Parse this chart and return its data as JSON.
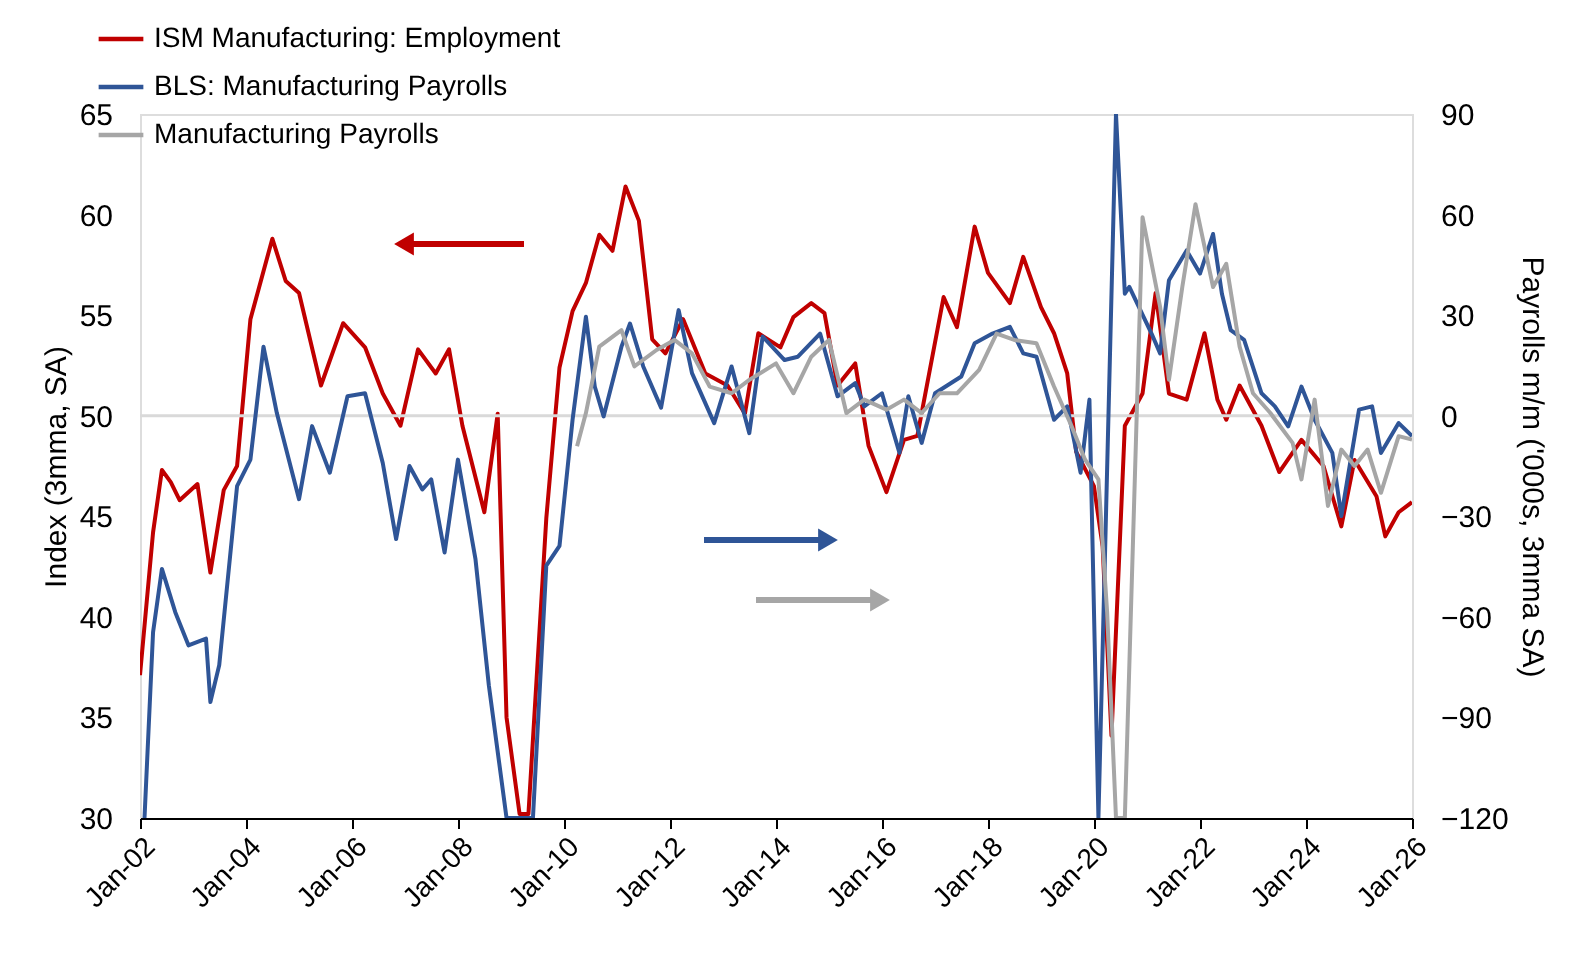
{
  "chart_data": {
    "type": "line",
    "ylabel": "Index (3mma, SA)",
    "y2label": "Payrolls m/m ('000s, 3mma SA)",
    "xlim": [
      "2002-01",
      "2026-01"
    ],
    "xticks": [
      {
        "value": "2002-01",
        "label": "Jan-02"
      },
      {
        "value": "2004-01",
        "label": "Jan-04"
      },
      {
        "value": "2006-01",
        "label": "Jan-06"
      },
      {
        "value": "2008-01",
        "label": "Jan-08"
      },
      {
        "value": "2010-01",
        "label": "Jan-10"
      },
      {
        "value": "2012-01",
        "label": "Jan-12"
      },
      {
        "value": "2014-01",
        "label": "Jan-14"
      },
      {
        "value": "2016-01",
        "label": "Jan-16"
      },
      {
        "value": "2018-01",
        "label": "Jan-18"
      },
      {
        "value": "2020-01",
        "label": "Jan-20"
      },
      {
        "value": "2022-01",
        "label": "Jan-22"
      },
      {
        "value": "2024-01",
        "label": "Jan-24"
      },
      {
        "value": "2026-01",
        "label": "Jan-26"
      }
    ],
    "ylim": [
      30,
      65
    ],
    "yticks": [
      30,
      35,
      40,
      45,
      50,
      55,
      60,
      65
    ],
    "y2lim": [
      -120,
      90
    ],
    "y2ticks": [
      -120,
      -90,
      -60,
      -30,
      0,
      30,
      60,
      90
    ],
    "ref_lines": [
      {
        "axis": "y",
        "value": 50,
        "color": "#d9d9d9"
      }
    ],
    "legend": "top left",
    "grid": false,
    "line_style": "solid",
    "marker": "none",
    "series": [
      {
        "name": "ISM Manufacturing: Employment",
        "color": "#c00000",
        "x": [
          "2002-01",
          "2002-04",
          "2002-06",
          "2002-08",
          "2002-10",
          "2003-02",
          "2003-05",
          "2003-08",
          "2003-11",
          "2004-02",
          "2004-07",
          "2004-10",
          "2005-01",
          "2005-06",
          "2005-11",
          "2006-04",
          "2006-08",
          "2006-12",
          "2007-04",
          "2007-08",
          "2007-11",
          "2008-02",
          "2008-07",
          "2008-10",
          "2008-12",
          "2009-03",
          "2009-05",
          "2009-09",
          "2009-12",
          "2010-03",
          "2010-06",
          "2010-09",
          "2010-12",
          "2011-03",
          "2011-06",
          "2011-09",
          "2011-12",
          "2012-04",
          "2012-09",
          "2013-02",
          "2013-06",
          "2013-09",
          "2014-02",
          "2014-05",
          "2014-09",
          "2014-12",
          "2015-03",
          "2015-07",
          "2015-10",
          "2016-02",
          "2016-06",
          "2016-09",
          "2017-03",
          "2017-06",
          "2017-10",
          "2018-01",
          "2018-06",
          "2018-09",
          "2019-01",
          "2019-04",
          "2019-07",
          "2019-09",
          "2020-01",
          "2020-03",
          "2020-05",
          "2020-08",
          "2020-12",
          "2021-03",
          "2021-06",
          "2021-10",
          "2022-02",
          "2022-05",
          "2022-07",
          "2022-10",
          "2023-03",
          "2023-07",
          "2023-12",
          "2024-05",
          "2024-09",
          "2024-12",
          "2025-05",
          "2025-07",
          "2025-10",
          "2026-01"
        ],
        "values": [
          37.1,
          44.2,
          47.3,
          46.7,
          45.8,
          46.6,
          42.2,
          46.3,
          47.5,
          54.8,
          58.8,
          56.7,
          56.1,
          51.5,
          54.6,
          53.4,
          51.1,
          49.5,
          53.3,
          52.1,
          53.3,
          49.5,
          45.2,
          50.1,
          35.0,
          30.2,
          30.2,
          44.9,
          52.4,
          55.2,
          56.6,
          59.0,
          58.2,
          61.4,
          59.7,
          53.8,
          53.1,
          54.8,
          52.1,
          51.5,
          50.1,
          54.1,
          53.4,
          54.9,
          55.6,
          55.1,
          51.5,
          52.6,
          48.5,
          46.2,
          48.8,
          49.0,
          55.9,
          54.4,
          59.4,
          57.1,
          55.6,
          57.9,
          55.4,
          54.1,
          52.1,
          48.2,
          46.5,
          43.5,
          34.1,
          49.5,
          51.1,
          56.1,
          51.1,
          50.8,
          54.1,
          50.8,
          49.8,
          51.5,
          49.5,
          47.2,
          48.8,
          47.5,
          44.5,
          47.8,
          46.0,
          44.0,
          45.2,
          45.7
        ]
      },
      {
        "name": "BLS: Manufacturing Payrolls",
        "color": "#2f5597",
        "axis": "y2",
        "x": [
          "2002-02",
          "2002-04",
          "2002-06",
          "2002-09",
          "2002-12",
          "2003-04",
          "2003-05",
          "2003-07",
          "2003-11",
          "2004-02",
          "2004-05",
          "2004-08",
          "2005-01",
          "2005-04",
          "2005-08",
          "2005-12",
          "2006-04",
          "2006-08",
          "2006-11",
          "2007-02",
          "2007-05",
          "2007-07",
          "2007-10",
          "2008-01",
          "2008-05",
          "2008-08",
          "2008-12",
          "2009-06",
          "2009-09",
          "2009-12",
          "2010-03",
          "2010-06",
          "2010-08",
          "2010-10",
          "2011-02",
          "2011-04",
          "2011-07",
          "2011-11",
          "2012-03",
          "2012-06",
          "2012-11",
          "2013-03",
          "2013-07",
          "2013-10",
          "2014-03",
          "2014-06",
          "2014-11",
          "2015-03",
          "2015-07",
          "2015-09",
          "2016-01",
          "2016-05",
          "2016-07",
          "2016-10",
          "2017-01",
          "2017-07",
          "2017-10",
          "2018-02",
          "2018-06",
          "2018-09",
          "2018-12",
          "2019-04",
          "2019-07",
          "2019-10",
          "2019-12",
          "2020-02",
          "2020-06",
          "2020-08",
          "2020-09",
          "2021-02",
          "2021-04",
          "2021-06",
          "2021-10",
          "2022-01",
          "2022-04",
          "2022-06",
          "2022-08",
          "2022-11",
          "2023-03",
          "2023-06",
          "2023-09",
          "2023-12",
          "2024-03",
          "2024-07",
          "2024-09",
          "2025-01",
          "2025-04",
          "2025-06",
          "2025-10",
          "2026-01"
        ],
        "values": [
          -120,
          -64.6,
          -45.7,
          -58.6,
          -68.5,
          -66.5,
          -85.4,
          -74.4,
          -21.0,
          -13.1,
          20.6,
          0.8,
          -24.9,
          -3.1,
          -17.0,
          5.8,
          6.7,
          -14.1,
          -36.8,
          -15.0,
          -22.0,
          -19.0,
          -40.8,
          -13.1,
          -42.8,
          -80.4,
          -120,
          -120,
          -44.7,
          -38.8,
          -1.2,
          29.5,
          8.7,
          -0.2,
          20.6,
          27.5,
          14.7,
          2.4,
          31.5,
          12.7,
          -2.2,
          14.7,
          -5.2,
          23.6,
          16.6,
          17.6,
          24.5,
          5.8,
          9.7,
          2.8,
          6.7,
          -11.1,
          5.8,
          -8.1,
          6.7,
          11.7,
          21.6,
          24.5,
          26.5,
          18.6,
          17.6,
          -1.2,
          2.8,
          -17.0,
          4.8,
          -120,
          90,
          36.4,
          38.4,
          24.5,
          18.6,
          40.4,
          49.3,
          42.4,
          54.2,
          36.4,
          25.5,
          22.6,
          6.7,
          2.8,
          -3.2,
          8.7,
          -1.2,
          -11.1,
          -29.9,
          1.8,
          2.8,
          -11.1,
          -2.2,
          -6.1
        ]
      },
      {
        "name": "Manufacturing Payrolls",
        "color": "#a6a6a6",
        "axis": "y2",
        "x": [
          "2010-04",
          "2010-06",
          "2010-09",
          "2011-02",
          "2011-05",
          "2011-10",
          "2012-02",
          "2012-06",
          "2012-10",
          "2013-03",
          "2013-07",
          "2014-01",
          "2014-05",
          "2014-09",
          "2015-01",
          "2015-05",
          "2015-09",
          "2016-02",
          "2016-06",
          "2016-10",
          "2017-02",
          "2017-06",
          "2017-11",
          "2018-03",
          "2018-07",
          "2018-12",
          "2019-04",
          "2019-08",
          "2019-11",
          "2020-02",
          "2020-04",
          "2020-06",
          "2020-08",
          "2020-12",
          "2021-04",
          "2021-06",
          "2021-09",
          "2021-12",
          "2022-04",
          "2022-07",
          "2022-10",
          "2023-01",
          "2023-05",
          "2023-10",
          "2023-12",
          "2024-03",
          "2024-06",
          "2024-09",
          "2024-12",
          "2025-03",
          "2025-06",
          "2025-10",
          "2026-01"
        ],
        "values": [
          -9.1,
          0.8,
          20.6,
          25.5,
          14.7,
          19.6,
          22.6,
          18.6,
          8.7,
          6.7,
          10.7,
          15.6,
          6.7,
          17.6,
          22.6,
          0.8,
          4.8,
          1.8,
          4.8,
          0.8,
          6.7,
          6.7,
          13.7,
          24.5,
          22.6,
          21.6,
          8.7,
          -3.2,
          -13.1,
          -19.0,
          -58.6,
          -120,
          -120,
          59.2,
          32.5,
          10.7,
          38.4,
          63.1,
          38.4,
          45.3,
          20.6,
          6.7,
          0.8,
          -8.1,
          -19.0,
          4.8,
          -26.9,
          -10.1,
          -15.0,
          -10.1,
          -23.0,
          -6.1,
          -7.1
        ]
      }
    ]
  }
}
